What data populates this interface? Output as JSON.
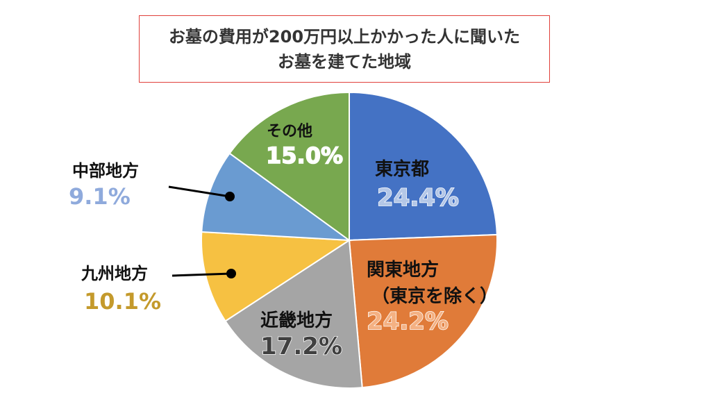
{
  "title": {
    "line1": "お墓の費用が200万円以上かかった人に聞いた",
    "line2": "お墓を建てた地域"
  },
  "chart_data": {
    "type": "pie",
    "title": "お墓の費用が200万円以上かかった人に聞いた お墓を建てた地域",
    "slices": [
      {
        "label": "東京都",
        "value": 24.4,
        "value_label": "24.4%",
        "color": "#4472c4"
      },
      {
        "label": "関東地方",
        "sublabel": "（東京を除く）",
        "value": 24.2,
        "value_label": "24.2%",
        "color": "#e07b39"
      },
      {
        "label": "近畿地方",
        "value": 17.2,
        "value_label": "17.2%",
        "color": "#a5a5a5"
      },
      {
        "label": "九州地方",
        "value": 10.1,
        "value_label": "10.1%",
        "color": "#f6c142"
      },
      {
        "label": "中部地方",
        "value": 9.1,
        "value_label": "9.1%",
        "color": "#6a9bd1"
      },
      {
        "label": "その他",
        "value": 15.0,
        "value_label": "15.0%",
        "color": "#78a84f"
      }
    ]
  }
}
